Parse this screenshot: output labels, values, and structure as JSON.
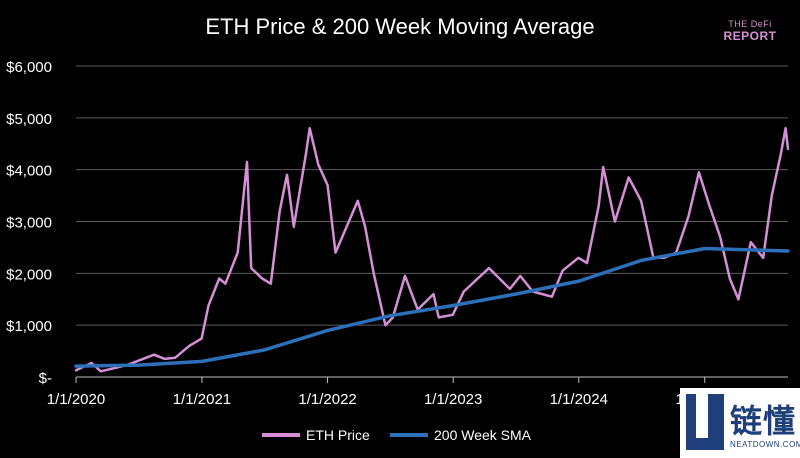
{
  "chart_data": {
    "type": "line",
    "title": "ETH Price & 200 Week Moving Average",
    "xlabel": "",
    "ylabel": "",
    "x_range": [
      "2020-01-01",
      "2025-08-31"
    ],
    "x_ticks": [
      "1/1/2020",
      "1/1/2021",
      "1/1/2022",
      "1/1/2023",
      "1/1/2024",
      "1/1/2025"
    ],
    "ylim": [
      0,
      6000
    ],
    "y_ticks": [
      {
        "value": 0,
        "label": "$-"
      },
      {
        "value": 1000,
        "label": "$1,000"
      },
      {
        "value": 2000,
        "label": "$2,000"
      },
      {
        "value": 3000,
        "label": "$3,000"
      },
      {
        "value": 4000,
        "label": "$4,000"
      },
      {
        "value": 5000,
        "label": "$5,000"
      },
      {
        "value": 6000,
        "label": "$6,000"
      }
    ],
    "grid": "horizontal",
    "legend": "bottom",
    "series": [
      {
        "name": "ETH Price",
        "color": "#d68fd6",
        "points": [
          [
            "2020-01-01",
            130
          ],
          [
            "2020-02-15",
            270
          ],
          [
            "2020-03-13",
            110
          ],
          [
            "2020-04-15",
            160
          ],
          [
            "2020-06-01",
            240
          ],
          [
            "2020-08-15",
            430
          ],
          [
            "2020-09-15",
            350
          ],
          [
            "2020-10-15",
            370
          ],
          [
            "2020-11-25",
            600
          ],
          [
            "2020-12-31",
            740
          ],
          [
            "2021-01-20",
            1380
          ],
          [
            "2021-02-20",
            1900
          ],
          [
            "2021-03-10",
            1800
          ],
          [
            "2021-04-15",
            2400
          ],
          [
            "2021-05-12",
            4150
          ],
          [
            "2021-05-24",
            2100
          ],
          [
            "2021-06-25",
            1900
          ],
          [
            "2021-07-20",
            1800
          ],
          [
            "2021-08-15",
            3200
          ],
          [
            "2021-09-05",
            3900
          ],
          [
            "2021-09-25",
            2900
          ],
          [
            "2021-10-30",
            4300
          ],
          [
            "2021-11-10",
            4800
          ],
          [
            "2021-12-05",
            4100
          ],
          [
            "2022-01-01",
            3700
          ],
          [
            "2022-01-24",
            2400
          ],
          [
            "2022-03-30",
            3400
          ],
          [
            "2022-04-20",
            2900
          ],
          [
            "2022-05-15",
            2000
          ],
          [
            "2022-06-18",
            1000
          ],
          [
            "2022-07-10",
            1150
          ],
          [
            "2022-08-14",
            1950
          ],
          [
            "2022-09-20",
            1300
          ],
          [
            "2022-11-05",
            1600
          ],
          [
            "2022-11-20",
            1150
          ],
          [
            "2022-12-31",
            1200
          ],
          [
            "2023-02-01",
            1650
          ],
          [
            "2023-04-15",
            2100
          ],
          [
            "2023-06-15",
            1700
          ],
          [
            "2023-07-15",
            1950
          ],
          [
            "2023-08-20",
            1650
          ],
          [
            "2023-10-15",
            1550
          ],
          [
            "2023-11-15",
            2050
          ],
          [
            "2023-12-31",
            2300
          ],
          [
            "2024-01-25",
            2200
          ],
          [
            "2024-02-28",
            3300
          ],
          [
            "2024-03-12",
            4050
          ],
          [
            "2024-04-15",
            3000
          ],
          [
            "2024-05-25",
            3850
          ],
          [
            "2024-06-30",
            3400
          ],
          [
            "2024-08-05",
            2300
          ],
          [
            "2024-09-05",
            2300
          ],
          [
            "2024-10-10",
            2400
          ],
          [
            "2024-11-15",
            3100
          ],
          [
            "2024-12-15",
            3950
          ],
          [
            "2025-01-15",
            3300
          ],
          [
            "2025-02-15",
            2700
          ],
          [
            "2025-03-15",
            1900
          ],
          [
            "2025-04-09",
            1500
          ],
          [
            "2025-05-15",
            2600
          ],
          [
            "2025-06-20",
            2300
          ],
          [
            "2025-07-15",
            3500
          ],
          [
            "2025-08-10",
            4300
          ],
          [
            "2025-08-24",
            4800
          ],
          [
            "2025-08-31",
            4400
          ]
        ]
      },
      {
        "name": "200 Week SMA",
        "color": "#2e6fba",
        "points": [
          [
            "2020-01-01",
            210
          ],
          [
            "2020-07-01",
            230
          ],
          [
            "2021-01-01",
            300
          ],
          [
            "2021-07-01",
            520
          ],
          [
            "2022-01-01",
            900
          ],
          [
            "2022-07-01",
            1180
          ],
          [
            "2023-01-01",
            1380
          ],
          [
            "2023-07-01",
            1600
          ],
          [
            "2024-01-01",
            1850
          ],
          [
            "2024-07-01",
            2250
          ],
          [
            "2025-01-01",
            2480
          ],
          [
            "2025-08-31",
            2430
          ]
        ]
      }
    ]
  },
  "logo": {
    "line1": "THE DeFi",
    "line2": "REPORT"
  },
  "watermark": {
    "text": "链懂",
    "sub": "NEATDOWN.COM"
  }
}
